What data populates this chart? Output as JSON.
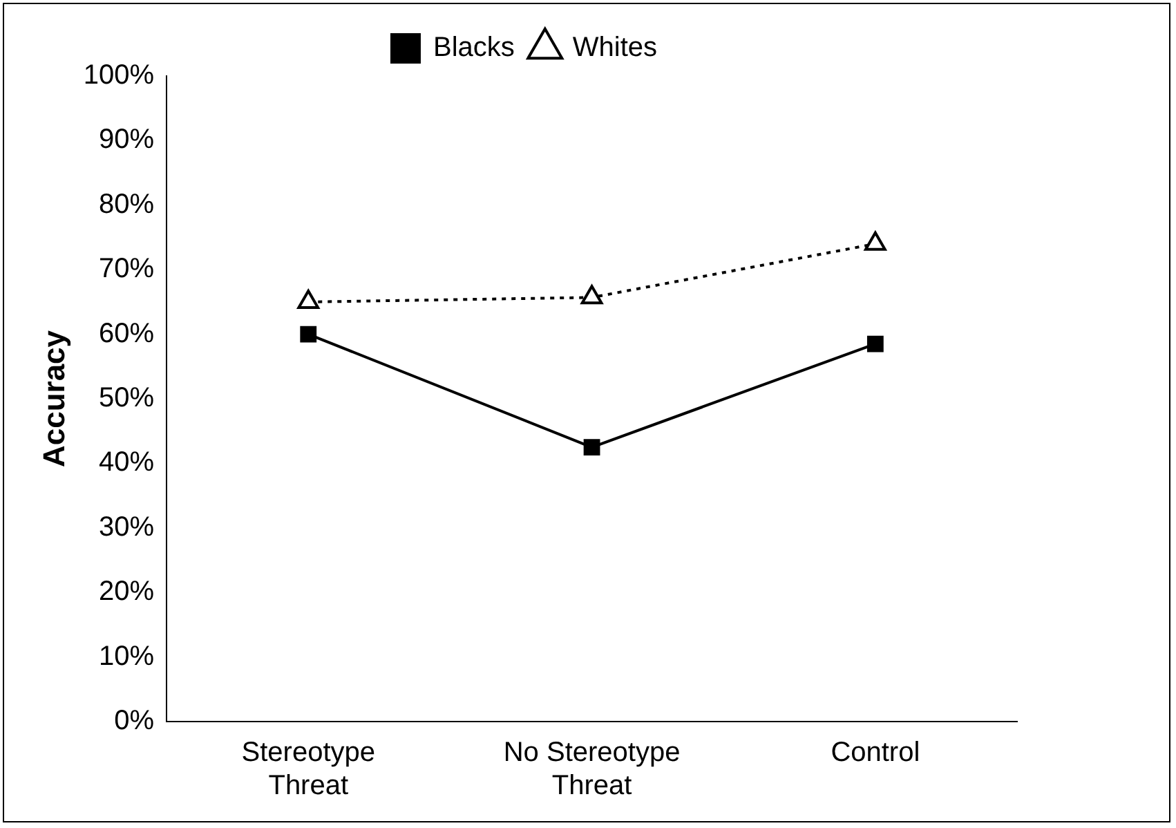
{
  "chart_data": {
    "type": "line",
    "ylabel": "Accuracy",
    "categories": [
      "Stereotype Threat",
      "No Stereotype Threat",
      "Control"
    ],
    "series": [
      {
        "name": "Blacks",
        "color": "#000000",
        "values": [
          60,
          42.5,
          58.5
        ],
        "marker": "square",
        "line_style": "solid"
      },
      {
        "name": "Whites",
        "color": "#000000",
        "values": [
          65,
          65.7,
          74
        ],
        "marker": "triangle",
        "line_style": "dotted"
      }
    ],
    "ylim": [
      0,
      100
    ],
    "yticks": [
      {
        "value": 0,
        "label": "0%"
      },
      {
        "value": 10,
        "label": "10%"
      },
      {
        "value": 20,
        "label": "20%"
      },
      {
        "value": 30,
        "label": "30%"
      },
      {
        "value": 40,
        "label": "40%"
      },
      {
        "value": 50,
        "label": "50%"
      },
      {
        "value": 60,
        "label": "60%"
      },
      {
        "value": 70,
        "label": "70%"
      },
      {
        "value": 80,
        "label": "80%"
      },
      {
        "value": 90,
        "label": "90%"
      },
      {
        "value": 100,
        "label": "100%"
      }
    ],
    "grid": false,
    "legend": "top"
  }
}
